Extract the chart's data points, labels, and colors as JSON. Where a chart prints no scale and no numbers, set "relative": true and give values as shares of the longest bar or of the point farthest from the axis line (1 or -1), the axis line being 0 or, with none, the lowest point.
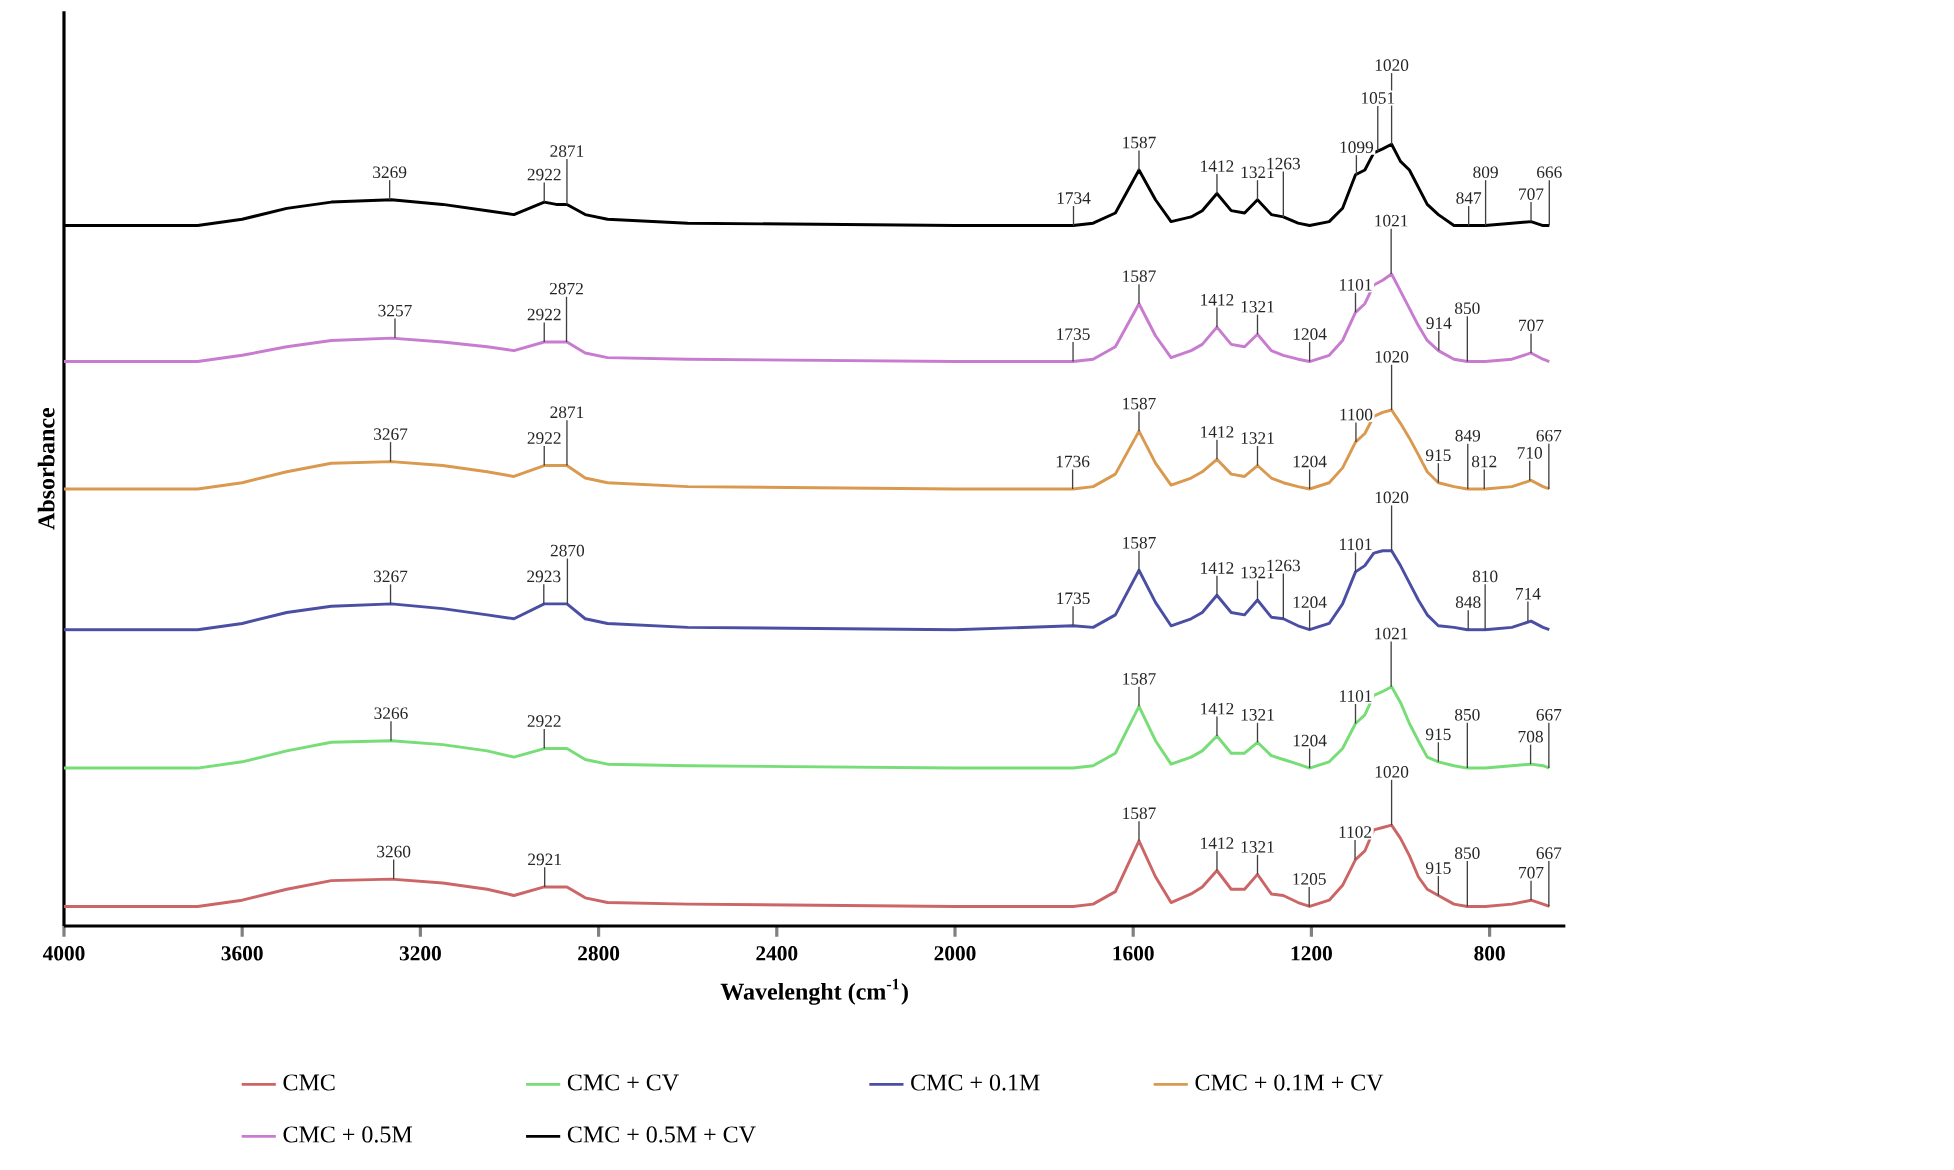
{
  "chart_data": {
    "type": "line",
    "relative": true,
    "xlabel": "Wavelenght (cm$^{-1}$)",
    "ylabel": "Absorbance",
    "xlim": [
      4000,
      630
    ],
    "xticks": [
      4000,
      3600,
      3200,
      2800,
      2400,
      2000,
      1600,
      1200,
      800
    ],
    "legend": "bottom",
    "x": [
      4000,
      3700,
      3600,
      3500,
      3400,
      3265,
      3150,
      3050,
      2990,
      2922,
      2895,
      2871,
      2830,
      2780,
      2600,
      2000,
      1735,
      1690,
      1640,
      1587,
      1550,
      1515,
      1470,
      1445,
      1412,
      1380,
      1350,
      1321,
      1290,
      1263,
      1230,
      1204,
      1160,
      1130,
      1101,
      1080,
      1060,
      1040,
      1020,
      1000,
      980,
      960,
      940,
      915,
      880,
      850,
      810,
      750,
      707,
      680,
      666
    ],
    "series": [
      {
        "name": "CMC",
        "color": "#cc6666",
        "values": [
          0.025,
          0.025,
          0.033,
          0.047,
          0.058,
          0.06,
          0.055,
          0.047,
          0.039,
          0.05,
          0.05,
          0.05,
          0.036,
          0.03,
          0.028,
          0.025,
          0.025,
          0.028,
          0.044,
          0.109,
          0.063,
          0.03,
          0.041,
          0.05,
          0.071,
          0.047,
          0.047,
          0.066,
          0.041,
          0.039,
          0.03,
          0.025,
          0.033,
          0.052,
          0.085,
          0.096,
          0.123,
          0.126,
          0.129,
          0.112,
          0.09,
          0.063,
          0.047,
          0.039,
          0.028,
          0.025,
          0.025,
          0.028,
          0.033,
          0.028,
          0.025
        ]
      },
      {
        "name": "CMC + CV",
        "color": "#77dd77",
        "values": [
          0.202,
          0.202,
          0.21,
          0.224,
          0.235,
          0.237,
          0.232,
          0.224,
          0.216,
          0.227,
          0.227,
          0.227,
          0.213,
          0.207,
          0.205,
          0.202,
          0.202,
          0.205,
          0.221,
          0.281,
          0.237,
          0.207,
          0.216,
          0.224,
          0.243,
          0.221,
          0.221,
          0.235,
          0.218,
          0.213,
          0.207,
          0.202,
          0.21,
          0.227,
          0.259,
          0.27,
          0.295,
          0.3,
          0.306,
          0.286,
          0.259,
          0.237,
          0.216,
          0.21,
          0.205,
          0.202,
          0.202,
          0.205,
          0.207,
          0.205,
          0.202
        ]
      },
      {
        "name": "CMC + 0.1M",
        "color": "#4a4fa3",
        "values": [
          0.379,
          0.379,
          0.387,
          0.401,
          0.409,
          0.412,
          0.406,
          0.398,
          0.393,
          0.412,
          0.412,
          0.412,
          0.393,
          0.387,
          0.382,
          0.379,
          0.384,
          0.382,
          0.398,
          0.455,
          0.414,
          0.384,
          0.393,
          0.401,
          0.423,
          0.401,
          0.398,
          0.417,
          0.395,
          0.393,
          0.384,
          0.379,
          0.387,
          0.412,
          0.453,
          0.461,
          0.477,
          0.48,
          0.48,
          0.461,
          0.439,
          0.417,
          0.398,
          0.384,
          0.382,
          0.379,
          0.379,
          0.382,
          0.39,
          0.382,
          0.379
        ]
      },
      {
        "name": "CMC + 0.1M + CV",
        "color": "#d9994f",
        "values": [
          0.559,
          0.559,
          0.567,
          0.581,
          0.592,
          0.594,
          0.589,
          0.581,
          0.575,
          0.589,
          0.589,
          0.589,
          0.573,
          0.567,
          0.562,
          0.559,
          0.559,
          0.562,
          0.578,
          0.633,
          0.592,
          0.564,
          0.573,
          0.581,
          0.597,
          0.578,
          0.575,
          0.589,
          0.573,
          0.567,
          0.562,
          0.559,
          0.567,
          0.586,
          0.619,
          0.63,
          0.652,
          0.657,
          0.66,
          0.643,
          0.624,
          0.603,
          0.581,
          0.567,
          0.562,
          0.559,
          0.559,
          0.562,
          0.57,
          0.562,
          0.559
        ]
      },
      {
        "name": "CMC + 0.5M",
        "color": "#c77ccf",
        "values": [
          0.722,
          0.722,
          0.73,
          0.741,
          0.749,
          0.752,
          0.747,
          0.741,
          0.736,
          0.747,
          0.747,
          0.747,
          0.733,
          0.727,
          0.725,
          0.722,
          0.722,
          0.725,
          0.741,
          0.796,
          0.755,
          0.727,
          0.736,
          0.744,
          0.766,
          0.744,
          0.741,
          0.757,
          0.736,
          0.73,
          0.725,
          0.722,
          0.73,
          0.749,
          0.785,
          0.796,
          0.82,
          0.826,
          0.834,
          0.812,
          0.79,
          0.768,
          0.749,
          0.736,
          0.725,
          0.722,
          0.722,
          0.725,
          0.733,
          0.725,
          0.722
        ]
      },
      {
        "name": "CMC + 0.5M + CV",
        "color": "#000000",
        "values": [
          0.896,
          0.896,
          0.904,
          0.918,
          0.926,
          0.929,
          0.923,
          0.915,
          0.91,
          0.926,
          0.923,
          0.923,
          0.91,
          0.904,
          0.899,
          0.896,
          0.896,
          0.899,
          0.912,
          0.967,
          0.929,
          0.901,
          0.907,
          0.915,
          0.937,
          0.915,
          0.912,
          0.929,
          0.91,
          0.907,
          0.899,
          0.896,
          0.901,
          0.918,
          0.961,
          0.967,
          0.989,
          0.994,
          1.0,
          0.978,
          0.967,
          0.945,
          0.923,
          0.91,
          0.896,
          0.896,
          0.896,
          0.899,
          0.901,
          0.896,
          0.896
        ]
      }
    ],
    "annotations": [
      {
        "text": "3269",
        "x": 3269,
        "y": 0.929
      },
      {
        "text": "2922",
        "x": 2922,
        "y": 0.926
      },
      {
        "text": "2871",
        "x": 2871,
        "y": 0.923
      },
      {
        "text": "1734",
        "x": 1734,
        "y": 0.896
      },
      {
        "text": "1587",
        "x": 1587,
        "y": 0.967
      },
      {
        "text": "1412",
        "x": 1412,
        "y": 0.937
      },
      {
        "text": "1321",
        "x": 1321,
        "y": 0.929
      },
      {
        "text": "1263",
        "x": 1263,
        "y": 0.907
      },
      {
        "text": "1099",
        "x": 1099,
        "y": 0.961
      },
      {
        "text": "1051",
        "x": 1051,
        "y": 0.991
      },
      {
        "text": "1020",
        "x": 1020,
        "y": 1.0
      },
      {
        "text": "847",
        "x": 847,
        "y": 0.896
      },
      {
        "text": "809",
        "x": 809,
        "y": 0.896
      },
      {
        "text": "707",
        "x": 707,
        "y": 0.901
      },
      {
        "text": "666",
        "x": 666,
        "y": 0.896
      },
      {
        "text": "3257",
        "x": 3257,
        "y": 0.752
      },
      {
        "text": "2922",
        "x": 2922,
        "y": 0.747
      },
      {
        "text": "2872",
        "x": 2872,
        "y": 0.747
      },
      {
        "text": "1735",
        "x": 1735,
        "y": 0.722
      },
      {
        "text": "1587",
        "x": 1587,
        "y": 0.796
      },
      {
        "text": "1412",
        "x": 1412,
        "y": 0.766
      },
      {
        "text": "1321",
        "x": 1321,
        "y": 0.757
      },
      {
        "text": "1204",
        "x": 1204,
        "y": 0.722
      },
      {
        "text": "1101",
        "x": 1101,
        "y": 0.785
      },
      {
        "text": "1021",
        "x": 1021,
        "y": 0.834
      },
      {
        "text": "914",
        "x": 914,
        "y": 0.736
      },
      {
        "text": "850",
        "x": 850,
        "y": 0.722
      },
      {
        "text": "707",
        "x": 707,
        "y": 0.733
      },
      {
        "text": "3267",
        "x": 3267,
        "y": 0.594
      },
      {
        "text": "2922",
        "x": 2922,
        "y": 0.589
      },
      {
        "text": "2871",
        "x": 2871,
        "y": 0.589
      },
      {
        "text": "1736",
        "x": 1736,
        "y": 0.559
      },
      {
        "text": "1587",
        "x": 1587,
        "y": 0.633
      },
      {
        "text": "1412",
        "x": 1412,
        "y": 0.597
      },
      {
        "text": "1321",
        "x": 1321,
        "y": 0.589
      },
      {
        "text": "1204",
        "x": 1204,
        "y": 0.559
      },
      {
        "text": "1100",
        "x": 1100,
        "y": 0.619
      },
      {
        "text": "1020",
        "x": 1020,
        "y": 0.66
      },
      {
        "text": "915",
        "x": 915,
        "y": 0.567
      },
      {
        "text": "849",
        "x": 849,
        "y": 0.559
      },
      {
        "text": "812",
        "x": 812,
        "y": 0.559
      },
      {
        "text": "710",
        "x": 710,
        "y": 0.57
      },
      {
        "text": "667",
        "x": 667,
        "y": 0.559
      },
      {
        "text": "3267",
        "x": 3267,
        "y": 0.412
      },
      {
        "text": "2923",
        "x": 2923,
        "y": 0.412
      },
      {
        "text": "2870",
        "x": 2870,
        "y": 0.412
      },
      {
        "text": "1735",
        "x": 1735,
        "y": 0.384
      },
      {
        "text": "1587",
        "x": 1587,
        "y": 0.455
      },
      {
        "text": "1412",
        "x": 1412,
        "y": 0.423
      },
      {
        "text": "1321",
        "x": 1321,
        "y": 0.417
      },
      {
        "text": "1263",
        "x": 1263,
        "y": 0.393
      },
      {
        "text": "1204",
        "x": 1204,
        "y": 0.379
      },
      {
        "text": "1101",
        "x": 1101,
        "y": 0.453
      },
      {
        "text": "1020",
        "x": 1020,
        "y": 0.48
      },
      {
        "text": "848",
        "x": 848,
        "y": 0.379
      },
      {
        "text": "810",
        "x": 810,
        "y": 0.379
      },
      {
        "text": "714",
        "x": 714,
        "y": 0.39
      },
      {
        "text": "3266",
        "x": 3266,
        "y": 0.237
      },
      {
        "text": "2922",
        "x": 2922,
        "y": 0.227
      },
      {
        "text": "1587",
        "x": 1587,
        "y": 0.281
      },
      {
        "text": "1412",
        "x": 1412,
        "y": 0.243
      },
      {
        "text": "1321",
        "x": 1321,
        "y": 0.235
      },
      {
        "text": "1204",
        "x": 1204,
        "y": 0.202
      },
      {
        "text": "1101",
        "x": 1101,
        "y": 0.259
      },
      {
        "text": "1021",
        "x": 1021,
        "y": 0.306
      },
      {
        "text": "915",
        "x": 915,
        "y": 0.21
      },
      {
        "text": "850",
        "x": 850,
        "y": 0.202
      },
      {
        "text": "708",
        "x": 708,
        "y": 0.207
      },
      {
        "text": "667",
        "x": 667,
        "y": 0.202
      },
      {
        "text": "3260",
        "x": 3260,
        "y": 0.06
      },
      {
        "text": "2921",
        "x": 2921,
        "y": 0.05
      },
      {
        "text": "1587",
        "x": 1587,
        "y": 0.109
      },
      {
        "text": "1412",
        "x": 1412,
        "y": 0.071
      },
      {
        "text": "1321",
        "x": 1321,
        "y": 0.066
      },
      {
        "text": "1205",
        "x": 1205,
        "y": 0.025
      },
      {
        "text": "1102",
        "x": 1102,
        "y": 0.085
      },
      {
        "text": "1020",
        "x": 1020,
        "y": 0.129
      },
      {
        "text": "915",
        "x": 915,
        "y": 0.039
      },
      {
        "text": "850",
        "x": 850,
        "y": 0.025
      },
      {
        "text": "707",
        "x": 707,
        "y": 0.033
      },
      {
        "text": "667",
        "x": 667,
        "y": 0.025
      }
    ]
  }
}
